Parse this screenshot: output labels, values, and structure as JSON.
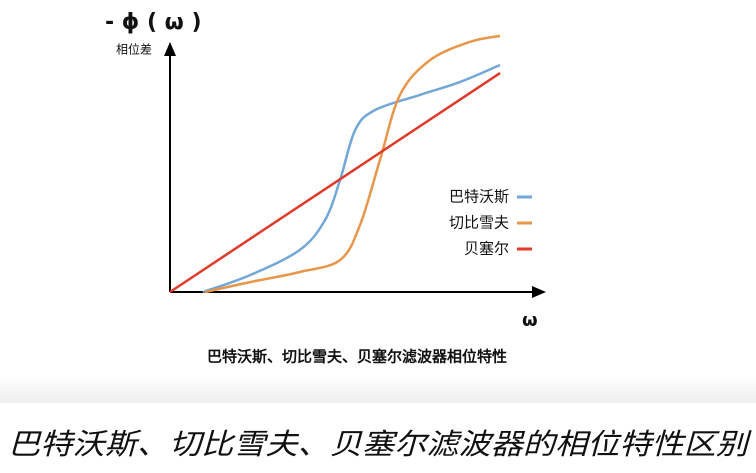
{
  "chart_data": {
    "type": "line",
    "title": "- ϕ ( ω )",
    "y_label": "相位差",
    "x_label": "ω",
    "caption": "巴特沃斯、切比雪夫、贝塞尔滤波器相位特性",
    "xlim": [
      0,
      10
    ],
    "ylim": [
      0,
      10
    ],
    "legend": "right",
    "series": [
      {
        "name": "巴特沃斯",
        "color": "#72a7d8",
        "x": [
          0.94,
          2.29,
          3.71,
          4.43,
          4.86,
          5.29,
          5.86,
          7.14,
          8.29,
          9.43
        ],
        "values": [
          0,
          0.65,
          1.62,
          2.77,
          4.31,
          6.23,
          7.0,
          7.58,
          8.08,
          8.73
        ]
      },
      {
        "name": "切比雪夫",
        "color": "#e8964a",
        "x": [
          1.0,
          2.29,
          3.71,
          4.86,
          5.43,
          6.0,
          6.57,
          7.43,
          8.57,
          9.43
        ],
        "values": [
          0,
          0.38,
          0.77,
          1.23,
          2.58,
          5.08,
          7.58,
          8.92,
          9.62,
          9.85
        ]
      },
      {
        "name": "贝塞尔",
        "color": "#e03a2b",
        "x": [
          0,
          9.43
        ],
        "values": [
          0,
          8.42
        ]
      }
    ]
  },
  "heading": "巴特沃斯、切比雪夫、贝塞尔滤波器的相位特性区别"
}
